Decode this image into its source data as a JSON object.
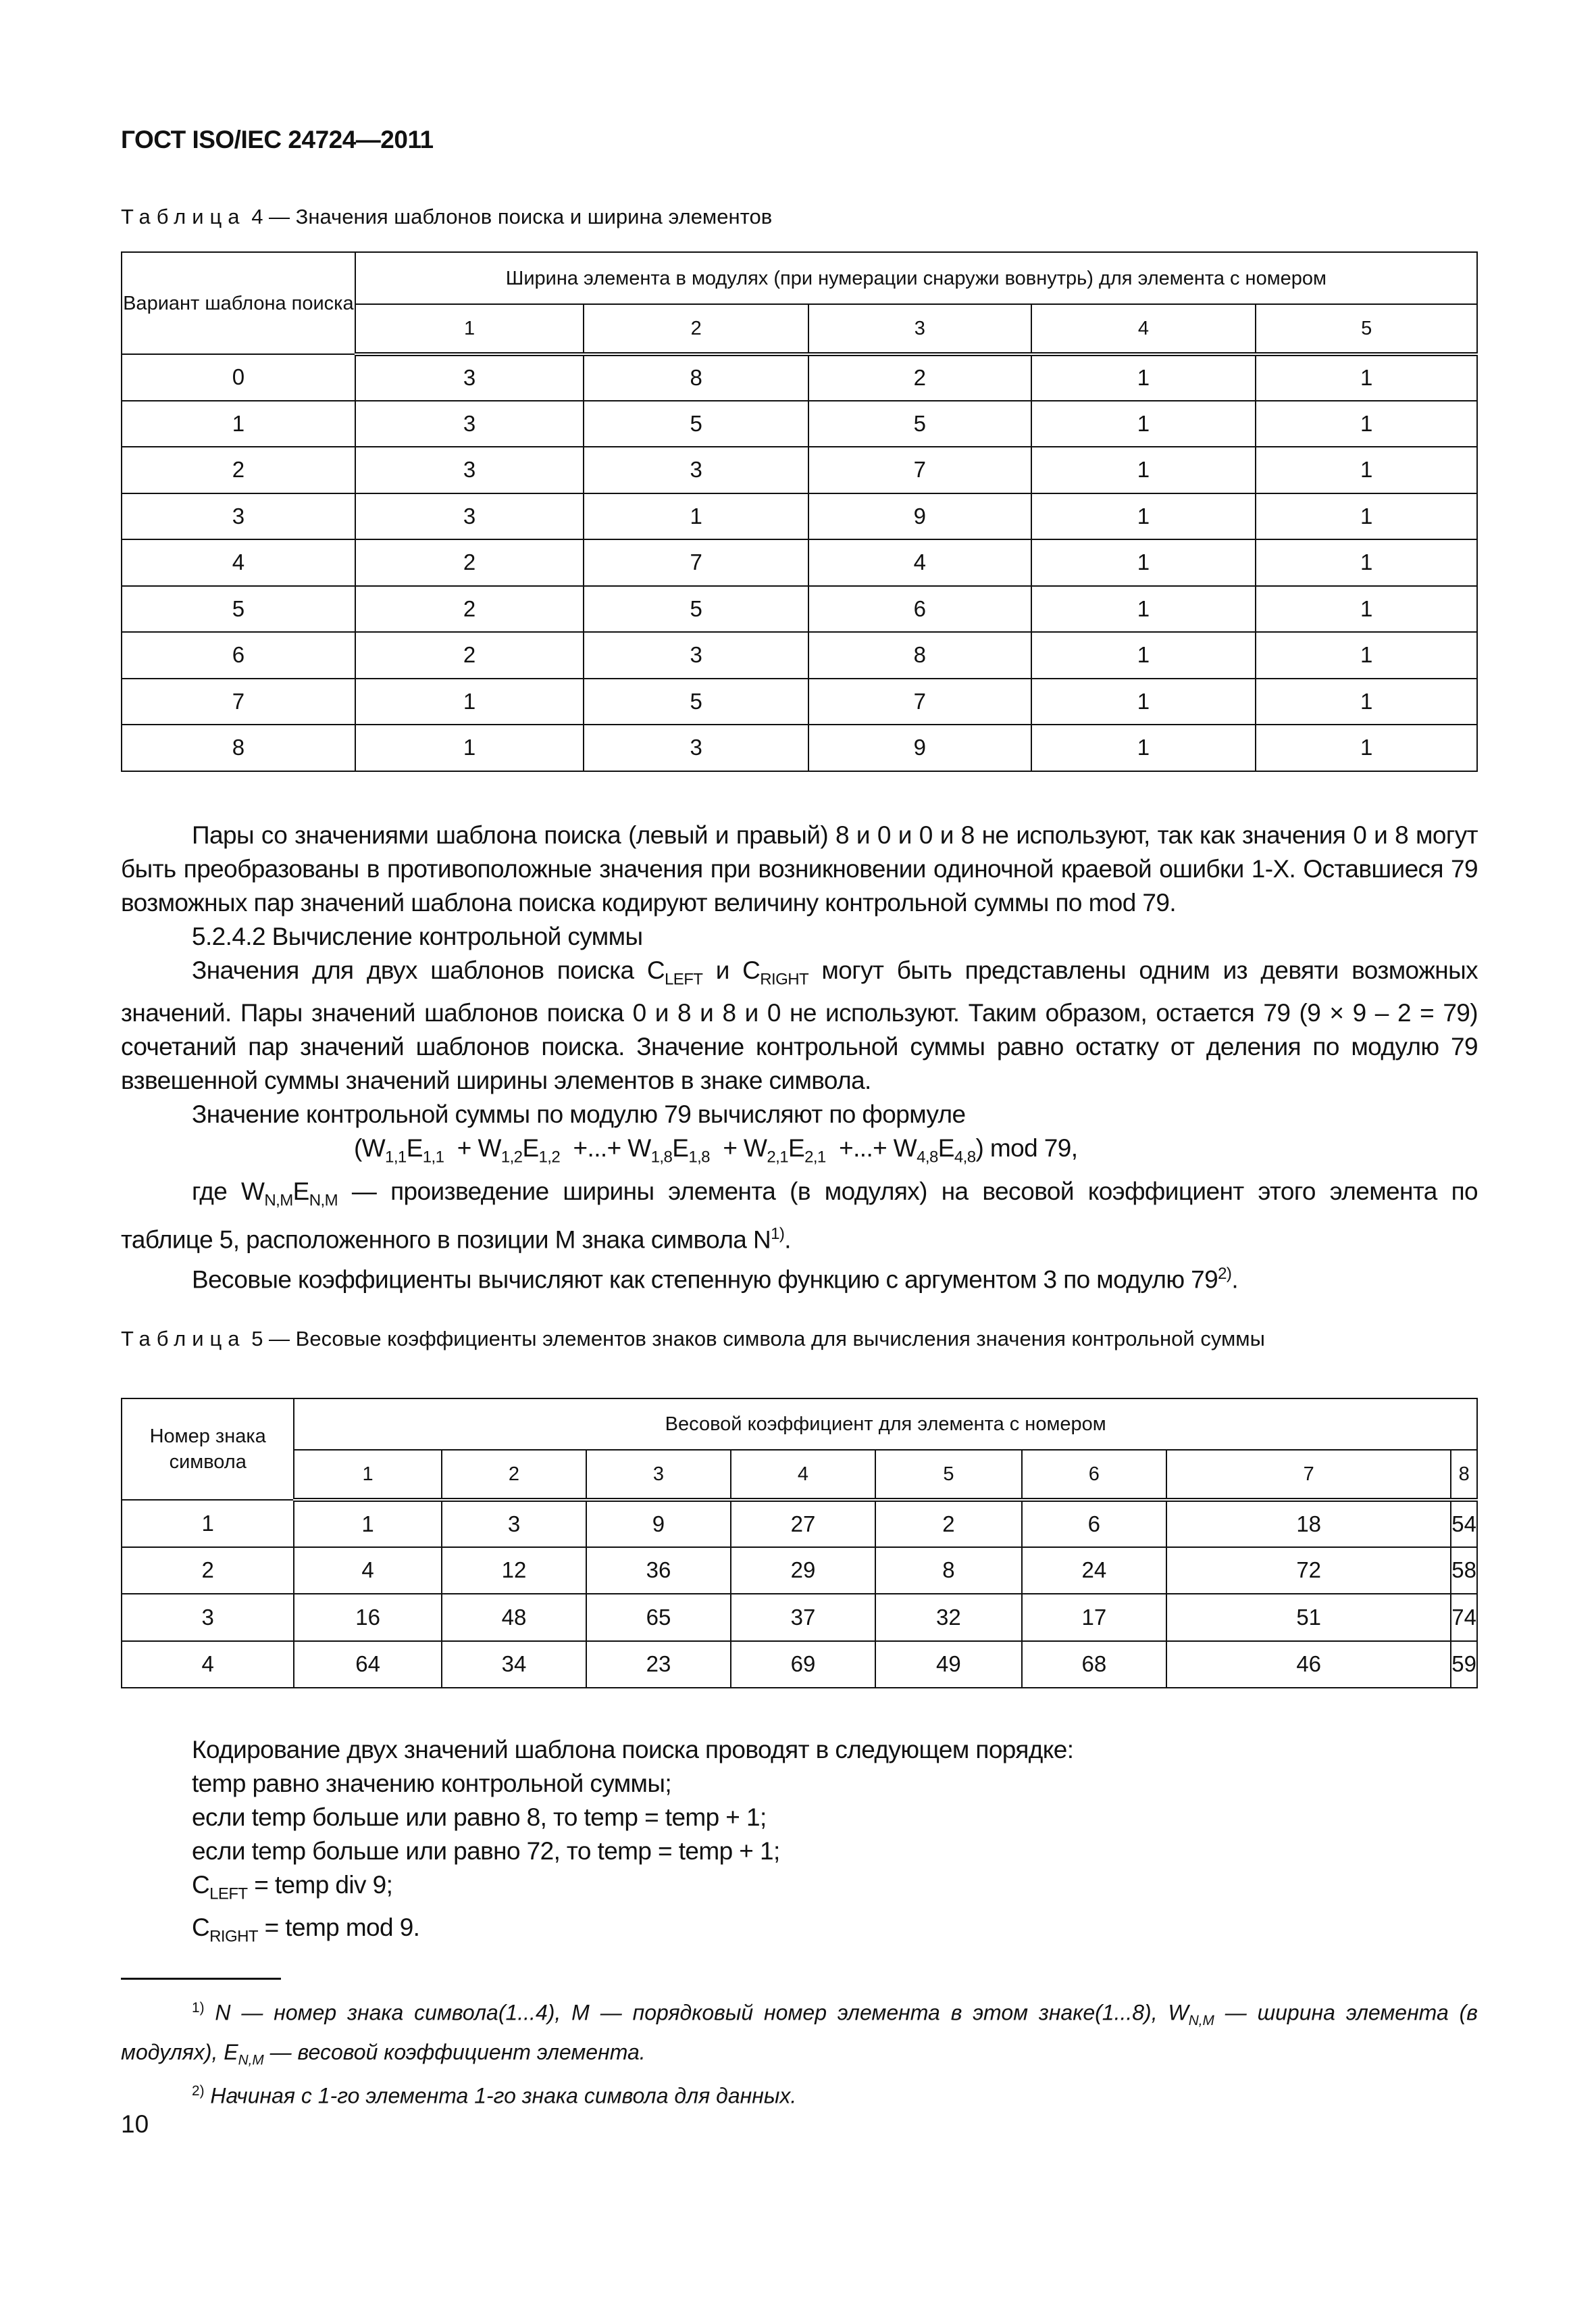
{
  "header": "ГОСТ ISO/IEC 24724—2011",
  "table4": {
    "caption_word": "Таблица",
    "caption_rest": "4 — Значения шаблонов поиска и ширина элементов",
    "col0": "Вариант шаблона поиска",
    "group": "Ширина элемента в модулях (при нумерации снаружи вовнутрь) для элемента с номером",
    "cols": [
      "1",
      "2",
      "3",
      "4",
      "5"
    ],
    "rows": [
      [
        "0",
        "3",
        "8",
        "2",
        "1",
        "1"
      ],
      [
        "1",
        "3",
        "5",
        "5",
        "1",
        "1"
      ],
      [
        "2",
        "3",
        "3",
        "7",
        "1",
        "1"
      ],
      [
        "3",
        "3",
        "1",
        "9",
        "1",
        "1"
      ],
      [
        "4",
        "2",
        "7",
        "4",
        "1",
        "1"
      ],
      [
        "5",
        "2",
        "5",
        "6",
        "1",
        "1"
      ],
      [
        "6",
        "2",
        "3",
        "8",
        "1",
        "1"
      ],
      [
        "7",
        "1",
        "5",
        "7",
        "1",
        "1"
      ],
      [
        "8",
        "1",
        "3",
        "9",
        "1",
        "1"
      ]
    ]
  },
  "body": {
    "p1": "Пары со значениями шаблона поиска (левый и правый) 8 и 0 и 0 и 8 не используют, так как значения 0 и 8 могут быть преобразованы в противоположные значения при возникновении одиночной краевой ошибки 1-X. Оставшиеся 79 возможных пар значений шаблона поиска кодируют величину контрольной суммы по mod 79.",
    "section": "5.2.4.2 Вычисление контрольной суммы",
    "p2a": "Значения для двух шаблонов поиска C",
    "p2_left": "LEFT",
    "p2b": " и C",
    "p2_right": "RIGHT",
    "p2c": " могут быть представлены одним из девяти возможных значений. Пары значений шаблонов поиска 0 и 8 и 8 и 0 не используют. Таким образом, остается 79 (9 × 9 – 2 = 79) сочетаний пар значений шаблонов поиска. Значение контрольной суммы равно остатку от деления по модулю 79 взвешенной суммы значений ширины элементов в знаке символа.",
    "p3": "Значение контрольной суммы по модулю 79 вычисляют по формуле",
    "formula": "(W1,1E1,1 + W1,2E1,2 +...+ W1,8E1,8 + W2,1E2,1 +...+ W4,8E4,8) mod 79,",
    "p4a": "где W",
    "p4_sub1": "N,M",
    "p4b": "E",
    "p4_sub2": "N,M",
    "p4c": " — произведение ширины элемента (в модулях) на весовой коэффициент этого элемента по таблице 5, расположенного в позиции M знака символа N",
    "p4_sup": "1)",
    "p5": "Весовые коэффициенты вычисляют как степенную функцию с аргументом 3 по модулю 79",
    "p5_sup": "2)"
  },
  "table5": {
    "caption_word": "Таблица",
    "caption_rest": "5 — Весовые коэффициенты элементов знаков символа для вычисления значения контрольной суммы",
    "col0": "Номер знака символа",
    "group": "Весовой коэффициент для элемента с номером",
    "cols": [
      "1",
      "2",
      "3",
      "4",
      "5",
      "6",
      "7",
      "8"
    ],
    "rows": [
      [
        "1",
        "1",
        "3",
        "9",
        "27",
        "2",
        "6",
        "18",
        "54"
      ],
      [
        "2",
        "4",
        "12",
        "36",
        "29",
        "8",
        "24",
        "72",
        "58"
      ],
      [
        "3",
        "16",
        "48",
        "65",
        "37",
        "32",
        "17",
        "51",
        "74"
      ],
      [
        "4",
        "64",
        "34",
        "23",
        "69",
        "49",
        "68",
        "46",
        "59"
      ]
    ]
  },
  "encoding": {
    "intro": "Кодирование двух значений шаблона поиска проводят в следующем порядке:",
    "l1": "temp равно значению контрольной суммы;",
    "l2": "если temp больше или равно 8, то temp = temp + 1;",
    "l3": "если temp больше или равно 72, то temp = temp + 1;",
    "l4_sub": "LEFT",
    "l4": " = temp div 9;",
    "l5_sub": "RIGHT",
    "l5": " = temp mod 9."
  },
  "footnotes": {
    "f1_mark": "1)",
    "f1": "N — номер знака символа(1...4), M — порядковый номер элемента в этом знаке(1...8), W",
    "f1_sub": "N,M",
    "f1b": " — ширина элемента (в модулях), E",
    "f1_sub2": "N,M",
    "f1c": " — весовой коэффициент элемента.",
    "f2_mark": "2)",
    "f2": "Начиная с 1-го элемента 1-го знака символа для данных."
  },
  "page_number": "10"
}
